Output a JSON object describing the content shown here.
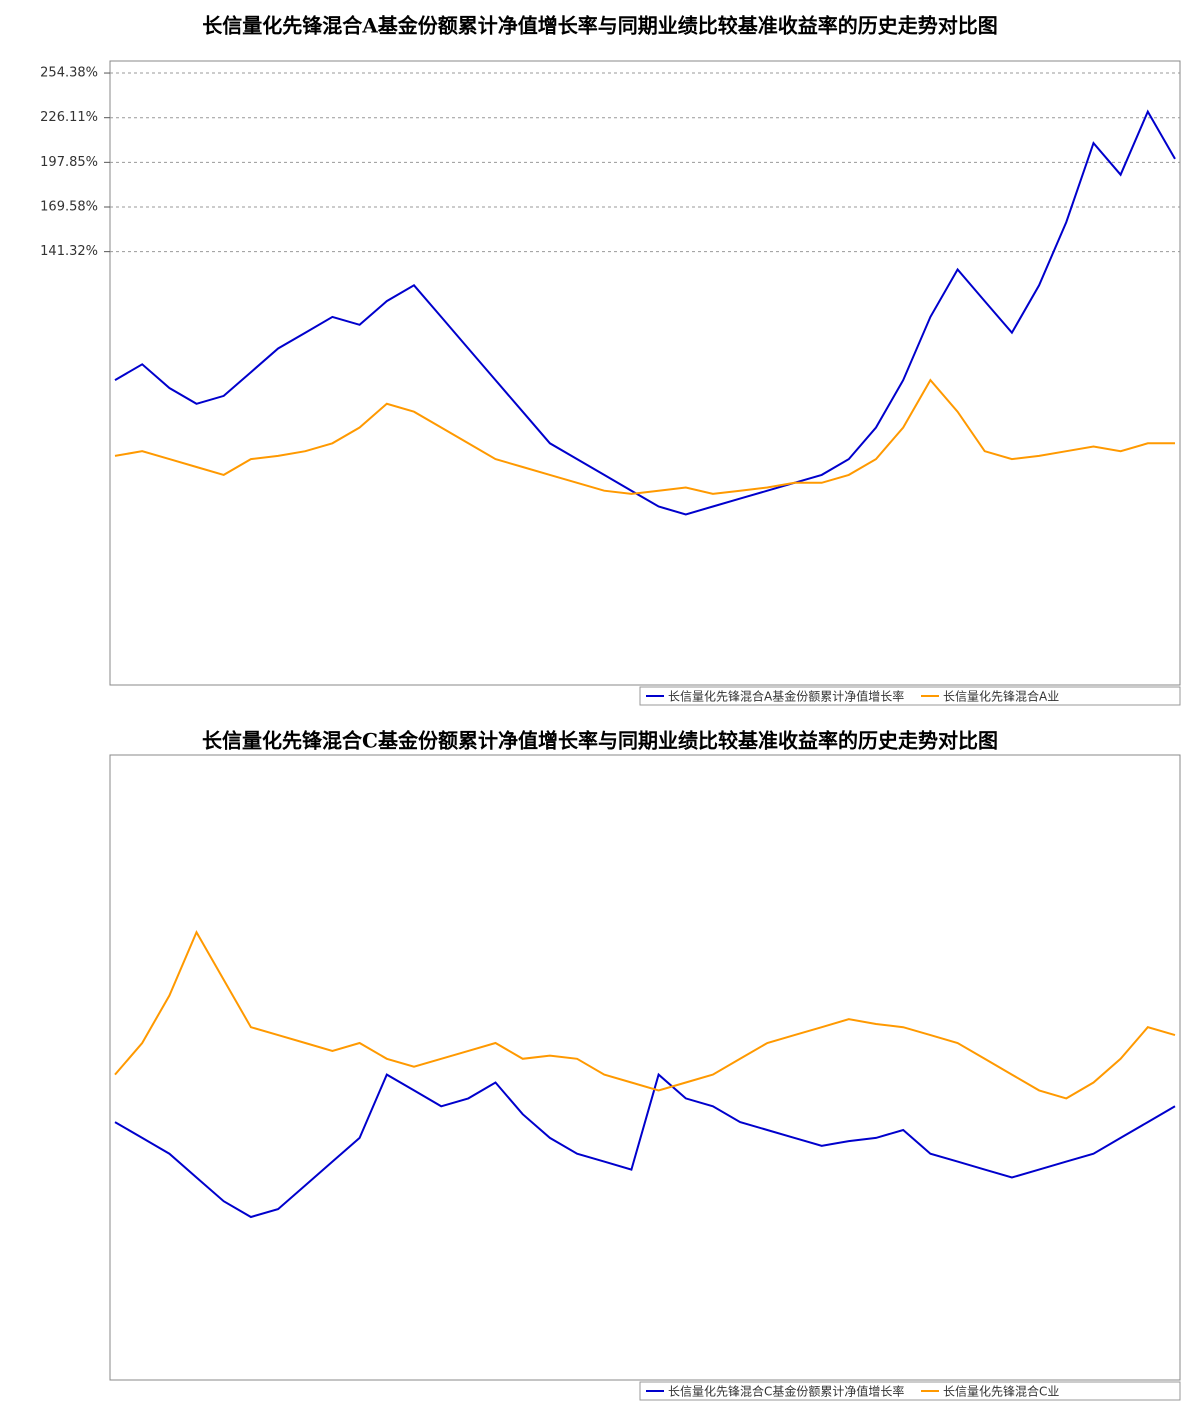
{
  "chart_data": [
    {
      "type": "line",
      "title": "长信量化先锋混合A基金份额累计净值增长率与同期业绩比较基准收益率的历史走势对比图",
      "ylim": [
        -133,
        262
      ],
      "yticks": [
        {
          "value": 254.38,
          "label": "254.38%"
        },
        {
          "value": 226.11,
          "label": "226.11%"
        },
        {
          "value": 197.85,
          "label": "197.85%"
        },
        {
          "value": 169.58,
          "label": "169.58%"
        },
        {
          "value": 141.32,
          "label": "141.32%"
        }
      ],
      "grid": true,
      "legend": "bottom-right",
      "series": [
        {
          "name": "长信量化先锋混合A基金份额累计净值增长率",
          "color": "#0000cc",
          "values": [
            60,
            70,
            55,
            45,
            50,
            65,
            80,
            90,
            100,
            95,
            110,
            120,
            100,
            80,
            60,
            40,
            20,
            10,
            0,
            -10,
            -20,
            -25,
            -20,
            -15,
            -10,
            -5,
            0,
            10,
            30,
            60,
            100,
            130,
            110,
            90,
            120,
            160,
            210,
            190,
            230,
            200
          ]
        },
        {
          "name": "长信量化先锋混合A业",
          "color": "#ff9900",
          "values": [
            12,
            15,
            10,
            5,
            0,
            10,
            12,
            15,
            20,
            30,
            45,
            40,
            30,
            20,
            10,
            5,
            0,
            -5,
            -10,
            -12,
            -10,
            -8,
            -12,
            -10,
            -8,
            -5,
            -5,
            0,
            10,
            30,
            60,
            40,
            15,
            10,
            12,
            15,
            18,
            15,
            20,
            20
          ]
        }
      ]
    },
    {
      "type": "line",
      "title": "长信量化先锋混合C基金份额累计净值增长率与同期业绩比较基准收益率的历史走势对比图",
      "ylim": [
        -133,
        262
      ],
      "grid": true,
      "legend": "bottom-right",
      "series": [
        {
          "name": "长信量化先锋混合C基金份额累计净值增长率",
          "color": "#0000cc",
          "values": [
            30,
            20,
            10,
            -5,
            -20,
            -30,
            -25,
            -10,
            5,
            20,
            60,
            50,
            40,
            45,
            55,
            35,
            20,
            10,
            5,
            0,
            60,
            45,
            40,
            30,
            25,
            20,
            15,
            18,
            20,
            25,
            10,
            5,
            0,
            -5,
            0,
            5,
            10,
            20,
            30,
            40
          ]
        },
        {
          "name": "长信量化先锋混合C业",
          "color": "#ff9900",
          "values": [
            60,
            80,
            110,
            150,
            120,
            90,
            85,
            80,
            75,
            80,
            70,
            65,
            70,
            75,
            80,
            70,
            72,
            70,
            60,
            55,
            50,
            55,
            60,
            70,
            80,
            85,
            90,
            95,
            92,
            90,
            85,
            80,
            70,
            60,
            50,
            45,
            55,
            70,
            90,
            85
          ]
        }
      ]
    }
  ]
}
